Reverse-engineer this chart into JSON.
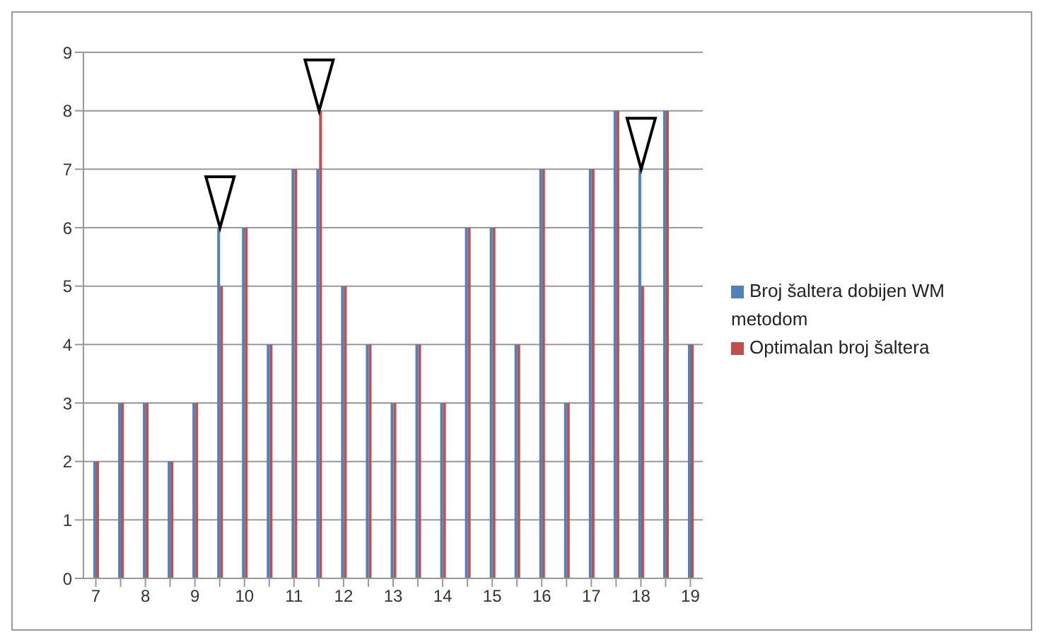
{
  "chart_data": {
    "type": "bar",
    "categories": [
      "7",
      null,
      "8",
      null,
      "9",
      null,
      "10",
      null,
      "11",
      null,
      "12",
      null,
      "13",
      null,
      "14",
      null,
      "15",
      null,
      "16",
      null,
      "17",
      null,
      "18",
      null,
      "19"
    ],
    "series": [
      {
        "name": "Broj šaltera dobijen WM metodom",
        "color": "#4f81bd",
        "values": [
          2,
          3,
          3,
          2,
          3,
          6,
          6,
          4,
          7,
          7,
          5,
          4,
          3,
          4,
          3,
          6,
          6,
          4,
          7,
          3,
          7,
          8,
          7,
          8,
          4
        ]
      },
      {
        "name": "Optimalan broj šaltera",
        "color": "#c0504d",
        "values": [
          2,
          3,
          3,
          2,
          3,
          5,
          6,
          4,
          7,
          8,
          5,
          4,
          3,
          4,
          3,
          6,
          6,
          4,
          7,
          3,
          7,
          8,
          5,
          8,
          4
        ]
      }
    ],
    "ylim": [
      0,
      9
    ],
    "yticks": [
      0,
      1,
      2,
      3,
      4,
      5,
      6,
      7,
      8,
      9
    ],
    "grid": "y",
    "legend": "right"
  }
}
